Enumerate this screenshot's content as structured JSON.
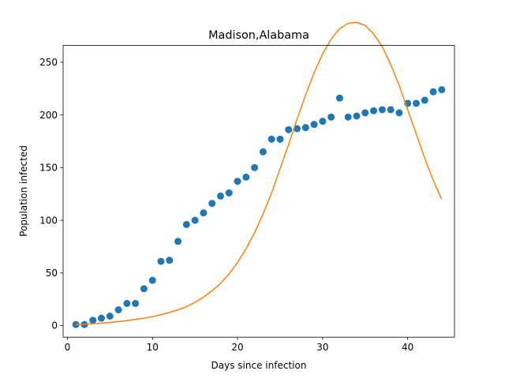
{
  "chart_data": {
    "type": "scatter",
    "title": "Madison,Alabama",
    "xlabel": "Days since infection",
    "ylabel": "Population infected",
    "xlim": [
      -0.5,
      45.5
    ],
    "ylim": [
      -11,
      266
    ],
    "xticks": [
      0,
      10,
      20,
      30,
      40
    ],
    "yticks": [
      0,
      50,
      100,
      150,
      200,
      250
    ],
    "grid": false,
    "legend": "none",
    "series": [
      {
        "kind": "scatter",
        "color": "#1f77b4",
        "x": [
          1,
          2,
          3,
          4,
          5,
          6,
          7,
          8,
          9,
          10,
          11,
          12,
          13,
          14,
          15,
          16,
          17,
          18,
          19,
          20,
          21,
          22,
          23,
          24,
          25,
          26,
          27,
          28,
          29,
          30,
          31,
          32,
          33,
          34,
          35,
          36,
          37,
          38,
          39,
          40,
          41,
          42,
          43,
          44
        ],
        "y": [
          1,
          1,
          5,
          7,
          9,
          15,
          21,
          21,
          35,
          43,
          61,
          62,
          80,
          96,
          100,
          107,
          116,
          123,
          126,
          137,
          141,
          150,
          165,
          177,
          177,
          186,
          187,
          188,
          191,
          194,
          198,
          216,
          198,
          199,
          202,
          204,
          205,
          205,
          202,
          211,
          211,
          214,
          222,
          224
        ]
      },
      {
        "kind": "line",
        "color": "#ff7f0e",
        "x": [
          1,
          2,
          3,
          4,
          5,
          6,
          7,
          8,
          9,
          10,
          11,
          12,
          13,
          14,
          15,
          16,
          17,
          18,
          19,
          20,
          21,
          22,
          23,
          24,
          25,
          26,
          27,
          28,
          29,
          30,
          31,
          32,
          33,
          34,
          35,
          36,
          37,
          38,
          39,
          40,
          41,
          42,
          43,
          44
        ],
        "y": [
          1,
          1.3,
          1.8,
          2.3,
          3.0,
          3.8,
          4.7,
          5.8,
          7.0,
          8.5,
          10.3,
          12.5,
          15,
          18,
          22,
          27,
          33,
          40,
          49,
          60,
          73,
          88,
          106,
          126,
          149,
          172,
          196,
          219,
          240,
          258,
          272,
          282,
          287,
          288,
          285,
          277,
          265,
          248,
          228,
          205,
          182,
          159,
          138,
          120
        ]
      }
    ]
  }
}
